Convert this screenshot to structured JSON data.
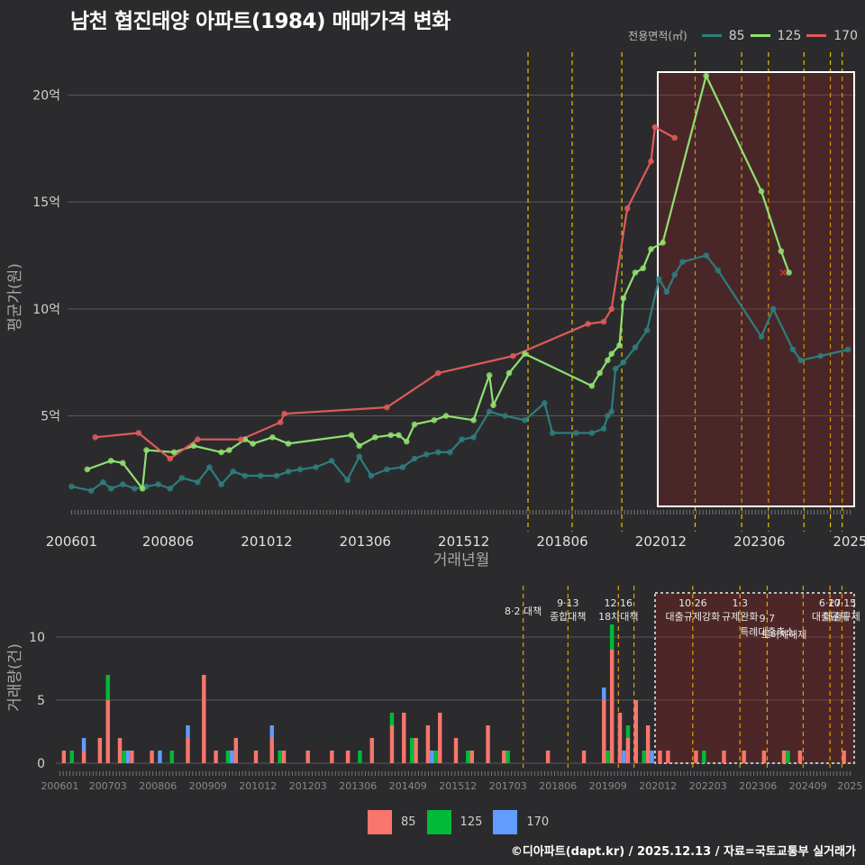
{
  "header": {
    "title": "남천 협진태양 아파트(1984) 매매가격 변화"
  },
  "footer": {
    "credit": "©디아파트(dapt.kr) / 2025.12.13 / 자료=국토교통부 실거래가"
  },
  "legend": {
    "title": "전용면적(㎡)",
    "items": [
      {
        "label": "85",
        "line_color": "#2e7d7d",
        "bar_color": "#f8766d"
      },
      {
        "label": "125",
        "line_color": "#90e070",
        "bar_color": "#00ba38"
      },
      {
        "label": "170",
        "line_color": "#e05a5a",
        "bar_color": "#619cff"
      }
    ]
  },
  "chart_data": [
    {
      "type": "line",
      "title": "남천 협진태양 아파트(1984) 매매가격 변화",
      "xlabel": "거래년월",
      "ylabel": "평균가(원)",
      "x_tick_labels": [
        "200601",
        "200806",
        "201012",
        "201306",
        "201512",
        "201806",
        "202012",
        "202306",
        "2025"
      ],
      "y_tick_labels": [
        "5억",
        "10억",
        "15억",
        "20억"
      ],
      "y_ticks": [
        5,
        10,
        15,
        20
      ],
      "ylim": [
        0.6,
        22
      ],
      "xlim": [
        2005.9,
        2025.9
      ],
      "unit": "억원",
      "series": [
        {
          "name": "85",
          "points": [
            [
              2006.0,
              1.7
            ],
            [
              2006.5,
              1.5
            ],
            [
              2006.8,
              1.9
            ],
            [
              2007.0,
              1.6
            ],
            [
              2007.3,
              1.8
            ],
            [
              2007.6,
              1.6
            ],
            [
              2007.9,
              1.7
            ],
            [
              2008.2,
              1.8
            ],
            [
              2008.5,
              1.6
            ],
            [
              2008.8,
              2.1
            ],
            [
              2009.2,
              1.9
            ],
            [
              2009.5,
              2.6
            ],
            [
              2009.8,
              1.8
            ],
            [
              2010.1,
              2.4
            ],
            [
              2010.4,
              2.2
            ],
            [
              2010.8,
              2.2
            ],
            [
              2011.2,
              2.2
            ],
            [
              2011.5,
              2.4
            ],
            [
              2011.8,
              2.5
            ],
            [
              2012.2,
              2.6
            ],
            [
              2012.6,
              2.9
            ],
            [
              2013.0,
              2.0
            ],
            [
              2013.3,
              3.1
            ],
            [
              2013.6,
              2.2
            ],
            [
              2014.0,
              2.5
            ],
            [
              2014.4,
              2.6
            ],
            [
              2014.7,
              3.0
            ],
            [
              2015.0,
              3.2
            ],
            [
              2015.3,
              3.3
            ],
            [
              2015.6,
              3.3
            ],
            [
              2015.9,
              3.9
            ],
            [
              2016.2,
              4.0
            ],
            [
              2016.6,
              5.2
            ],
            [
              2017.0,
              5.0
            ],
            [
              2017.5,
              4.8
            ],
            [
              2018.0,
              5.6
            ],
            [
              2018.2,
              4.2
            ],
            [
              2018.8,
              4.2
            ],
            [
              2019.2,
              4.2
            ],
            [
              2019.5,
              4.4
            ],
            [
              2019.6,
              5.0
            ],
            [
              2019.7,
              5.2
            ],
            [
              2019.8,
              7.2
            ],
            [
              2020.0,
              7.5
            ],
            [
              2020.3,
              8.2
            ],
            [
              2020.6,
              9.0
            ],
            [
              2020.9,
              11.4
            ],
            [
              2021.1,
              10.8
            ],
            [
              2021.3,
              11.6
            ],
            [
              2021.5,
              12.2
            ],
            [
              2022.1,
              12.5
            ],
            [
              2022.4,
              11.8
            ],
            [
              2023.5,
              8.7
            ],
            [
              2023.8,
              10.0
            ],
            [
              2024.3,
              8.1
            ],
            [
              2024.5,
              7.6
            ],
            [
              2025.0,
              7.8
            ],
            [
              2025.7,
              8.1
            ]
          ]
        },
        {
          "name": "125",
          "points": [
            [
              2006.4,
              2.5
            ],
            [
              2007.0,
              2.9
            ],
            [
              2007.3,
              2.8
            ],
            [
              2007.8,
              1.6
            ],
            [
              2007.9,
              3.4
            ],
            [
              2008.6,
              3.3
            ],
            [
              2009.1,
              3.6
            ],
            [
              2009.8,
              3.3
            ],
            [
              2010.0,
              3.4
            ],
            [
              2010.4,
              3.9
            ],
            [
              2010.6,
              3.7
            ],
            [
              2011.1,
              4.0
            ],
            [
              2011.5,
              3.7
            ],
            [
              2013.1,
              4.1
            ],
            [
              2013.3,
              3.6
            ],
            [
              2013.7,
              4.0
            ],
            [
              2014.1,
              4.1
            ],
            [
              2014.3,
              4.1
            ],
            [
              2014.5,
              3.8
            ],
            [
              2014.7,
              4.6
            ],
            [
              2015.2,
              4.8
            ],
            [
              2015.5,
              5.0
            ],
            [
              2016.2,
              4.8
            ],
            [
              2016.6,
              6.9
            ],
            [
              2016.7,
              5.5
            ],
            [
              2017.1,
              7.0
            ],
            [
              2017.5,
              7.9
            ],
            [
              2019.2,
              6.4
            ],
            [
              2019.4,
              7.0
            ],
            [
              2019.6,
              7.6
            ],
            [
              2019.7,
              7.9
            ],
            [
              2019.9,
              8.3
            ],
            [
              2020.0,
              10.5
            ],
            [
              2020.3,
              11.7
            ],
            [
              2020.5,
              11.9
            ],
            [
              2020.7,
              12.8
            ],
            [
              2021.0,
              13.1
            ],
            [
              2022.1,
              20.9
            ],
            [
              2023.5,
              15.5
            ],
            [
              2024.0,
              12.7
            ],
            [
              2024.2,
              11.7
            ]
          ]
        },
        {
          "name": "170",
          "points": [
            [
              2006.6,
              4.0
            ],
            [
              2007.7,
              4.2
            ],
            [
              2008.5,
              3.0
            ],
            [
              2009.2,
              3.9
            ],
            [
              2010.3,
              3.9
            ],
            [
              2011.3,
              4.7
            ],
            [
              2011.4,
              5.1
            ],
            [
              2014.0,
              5.4
            ],
            [
              2015.3,
              7.0
            ],
            [
              2017.2,
              7.8
            ],
            [
              2019.1,
              9.3
            ],
            [
              2019.5,
              9.4
            ],
            [
              2019.7,
              10.0
            ],
            [
              2020.1,
              14.7
            ],
            [
              2020.7,
              16.9
            ],
            [
              2020.8,
              18.5
            ],
            [
              2021.3,
              18.0
            ]
          ]
        }
      ]
    },
    {
      "type": "bar",
      "title": "거래량",
      "ylabel": "거래량(건)",
      "x_tick_labels": [
        "200601",
        "200703",
        "200806",
        "200909",
        "201012",
        "201203",
        "201306",
        "201409",
        "201512",
        "201703",
        "201806",
        "201909",
        "202012",
        "202203",
        "202306",
        "202409",
        "2025"
      ],
      "y_tick_labels": [
        "0",
        "5",
        "10"
      ],
      "y_ticks": [
        0,
        5,
        10
      ],
      "ylim": [
        0,
        13.5
      ],
      "stacked": true,
      "series": [
        {
          "name": "85",
          "points": [
            [
              2006.1,
              1
            ],
            [
              2006.6,
              1
            ],
            [
              2007.0,
              2
            ],
            [
              2007.2,
              5
            ],
            [
              2007.5,
              2
            ],
            [
              2007.8,
              1
            ],
            [
              2008.3,
              1
            ],
            [
              2009.2,
              2
            ],
            [
              2009.6,
              7
            ],
            [
              2009.9,
              1
            ],
            [
              2010.4,
              2
            ],
            [
              2010.9,
              1
            ],
            [
              2011.3,
              2
            ],
            [
              2011.6,
              1
            ],
            [
              2012.2,
              1
            ],
            [
              2012.8,
              1
            ],
            [
              2013.2,
              1
            ],
            [
              2013.8,
              2
            ],
            [
              2014.3,
              3
            ],
            [
              2014.6,
              4
            ],
            [
              2014.9,
              2
            ],
            [
              2015.2,
              3
            ],
            [
              2015.5,
              4
            ],
            [
              2015.9,
              2
            ],
            [
              2016.3,
              1
            ],
            [
              2016.7,
              3
            ],
            [
              2017.1,
              1
            ],
            [
              2018.2,
              1
            ],
            [
              2019.1,
              1
            ],
            [
              2019.6,
              5
            ],
            [
              2019.8,
              9
            ],
            [
              2020.0,
              4
            ],
            [
              2020.2,
              2
            ],
            [
              2020.4,
              5
            ],
            [
              2020.7,
              3
            ],
            [
              2021.0,
              1
            ],
            [
              2021.2,
              1
            ],
            [
              2021.9,
              1
            ],
            [
              2022.6,
              1
            ],
            [
              2023.1,
              1
            ],
            [
              2023.6,
              1
            ],
            [
              2024.1,
              1
            ],
            [
              2024.5,
              1
            ],
            [
              2025.6,
              1
            ]
          ]
        },
        {
          "name": "125",
          "points": [
            [
              2006.3,
              1
            ],
            [
              2007.2,
              2
            ],
            [
              2007.6,
              1
            ],
            [
              2008.8,
              1
            ],
            [
              2010.2,
              1
            ],
            [
              2011.5,
              1
            ],
            [
              2013.5,
              1
            ],
            [
              2014.3,
              1
            ],
            [
              2014.8,
              2
            ],
            [
              2015.4,
              1
            ],
            [
              2016.2,
              1
            ],
            [
              2017.2,
              1
            ],
            [
              2019.7,
              1
            ],
            [
              2019.8,
              2
            ],
            [
              2020.2,
              1
            ],
            [
              2020.6,
              1
            ],
            [
              2022.1,
              1
            ],
            [
              2024.2,
              1
            ]
          ]
        },
        {
          "name": "170",
          "points": [
            [
              2006.6,
              1
            ],
            [
              2007.7,
              1
            ],
            [
              2008.5,
              1
            ],
            [
              2009.2,
              1
            ],
            [
              2010.3,
              1
            ],
            [
              2011.3,
              1
            ],
            [
              2015.3,
              1
            ],
            [
              2019.6,
              1
            ],
            [
              2020.1,
              1
            ],
            [
              2020.8,
              1
            ]
          ]
        }
      ],
      "events": [
        {
          "date": 2017.58,
          "label": "8·2 대책"
        },
        {
          "date": 2018.7,
          "label": "9·13"
        },
        {
          "date": 2018.7,
          "label": "종합대책"
        },
        {
          "date": 2019.96,
          "label": "12·16"
        },
        {
          "date": 2019.96,
          "label": "18차대책"
        },
        {
          "date": 2020.35,
          "label": ""
        },
        {
          "date": 2021.82,
          "label": "10·26"
        },
        {
          "date": 2021.82,
          "label": "대출규제강화"
        },
        {
          "date": 2023.0,
          "label": "1·3"
        },
        {
          "date": 2023.0,
          "label": "규제완화"
        },
        {
          "date": 2023.68,
          "label": "9·7"
        },
        {
          "date": 2023.68,
          "label": "특례대출축소"
        },
        {
          "date": 2024.58,
          "label": "토허제해제"
        },
        {
          "date": 2025.25,
          "label": "6·27"
        },
        {
          "date": 2025.25,
          "label": "대출규제"
        },
        {
          "date": 2025.55,
          "label": "10·15"
        },
        {
          "date": 2025.55,
          "label": "대출규제"
        }
      ]
    }
  ]
}
